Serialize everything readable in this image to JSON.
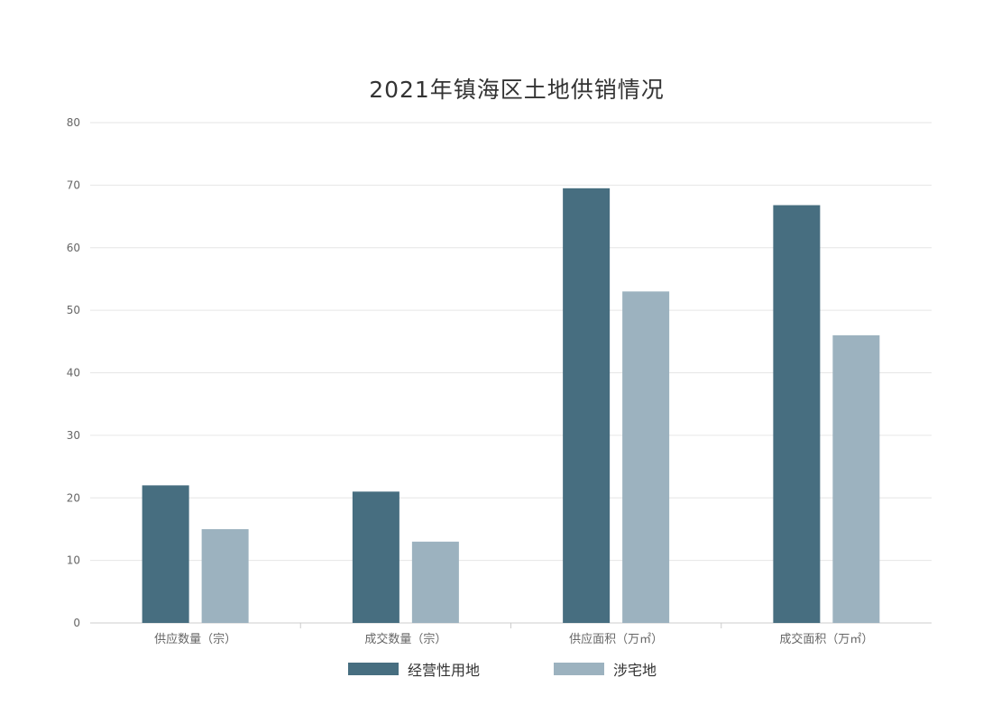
{
  "colors": {
    "series1": "#476e80",
    "series2": "#9cb2bf"
  },
  "chart_data": {
    "type": "bar",
    "title": "2021年镇海区土地供销情况",
    "categories": [
      "供应数量（宗）",
      "成交数量（宗）",
      "供应面积（万㎡）",
      "成交面积（万㎡）"
    ],
    "series": [
      {
        "name": "经营性用地",
        "values": [
          22,
          21,
          69.5,
          66.8
        ]
      },
      {
        "name": "涉宅地",
        "values": [
          15,
          13,
          53,
          46
        ]
      }
    ],
    "ylim": [
      0,
      80
    ],
    "yticks": [
      0,
      10,
      20,
      30,
      40,
      50,
      60,
      70,
      80
    ],
    "grid": true,
    "legend": "bottom"
  }
}
